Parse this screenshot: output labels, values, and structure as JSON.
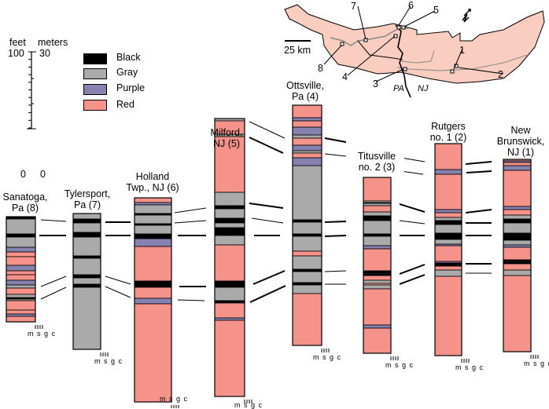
{
  "colors": {
    "black": "#000000",
    "gray": "#aaaaaa",
    "purple": "#8682b0",
    "red": "#f5928a",
    "map_fill": "#f9cdbf",
    "river": "#888888"
  },
  "scale": {
    "feet_label": "feet",
    "meters_label": "meters",
    "feet_value": "100",
    "meters_value": "30"
  },
  "legend": [
    {
      "label": "Black",
      "color": "#000000"
    },
    {
      "label": "Gray",
      "color": "#aaaaaa"
    },
    {
      "label": "Purple",
      "color": "#8682b0"
    },
    {
      "label": "Red",
      "color": "#f5928a"
    }
  ],
  "zero_labels": [
    "0",
    "0"
  ],
  "columns": [
    {
      "name": "sanatoga",
      "lines": [
        "Sanatoga,",
        "Pa (8)"
      ]
    },
    {
      "name": "tylersport",
      "lines": [
        "Tylersport,",
        "Pa (7)"
      ]
    },
    {
      "name": "holland",
      "lines": [
        "Holland",
        "Twp., NJ (6)"
      ]
    },
    {
      "name": "milford",
      "lines": [
        "Milford,",
        "NJ (5)"
      ]
    },
    {
      "name": "ottsville",
      "lines": [
        "Ottsville,",
        "Pa (4)"
      ]
    },
    {
      "name": "titusville",
      "lines": [
        "Titusville",
        "no. 2 (3)"
      ]
    },
    {
      "name": "rutgers",
      "lines": [
        "Rutgers",
        "no. 1 (2)"
      ]
    },
    {
      "name": "new-brunswick",
      "lines": [
        "New",
        "Brunswick,",
        "NJ (1)"
      ]
    }
  ],
  "grain_label": "m s g c",
  "map": {
    "scale_label": "25 km",
    "state_left": "PA",
    "state_right": "NJ",
    "site_numbers": [
      "1",
      "2",
      "3",
      "4",
      "5",
      "6",
      "7",
      "8"
    ]
  }
}
